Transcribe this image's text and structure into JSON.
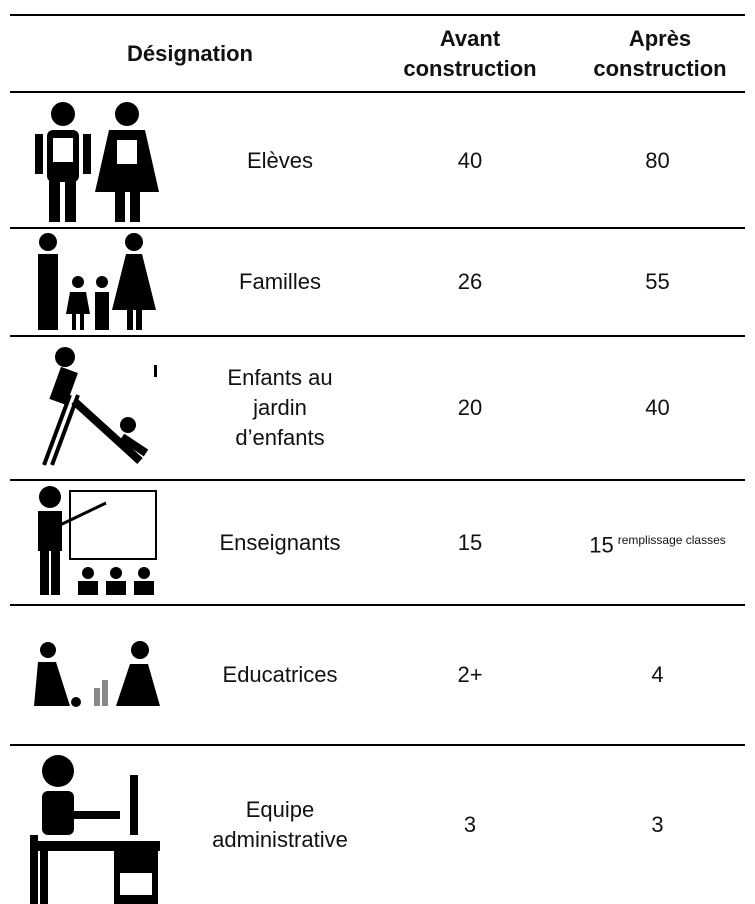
{
  "table": {
    "header": {
      "designation": "Désignation",
      "before": [
        "Avant",
        "construction"
      ],
      "after": [
        "Après",
        "construction"
      ]
    },
    "rows": [
      {
        "designation": [
          "Elèves"
        ],
        "before": "40",
        "after": "80"
      },
      {
        "designation": [
          "Familles"
        ],
        "before": "26",
        "after": "55"
      },
      {
        "designation": [
          "Enfants au",
          "jardin",
          "d’enfants"
        ],
        "before": "20",
        "after": "40"
      },
      {
        "designation": [
          "Enseignants"
        ],
        "before": "15",
        "after": "15",
        "after_note": "remplissage classes"
      },
      {
        "designation": [
          "Educatrices"
        ],
        "before": "2+",
        "after": "4"
      },
      {
        "designation": [
          "Equipe",
          "administrative"
        ],
        "before": "3",
        "after": "3"
      }
    ]
  }
}
